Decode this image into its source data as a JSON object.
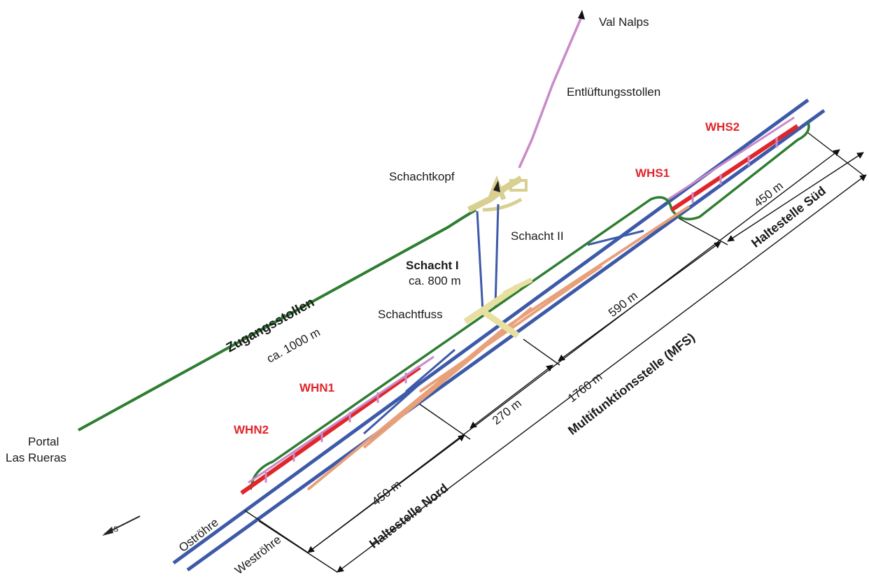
{
  "labels": {
    "val_nalps": "Val Nalps",
    "entlueftungsstollen": "Entlüftungsstollen",
    "schachtkopf": "Schachtkopf",
    "schacht_ii": "Schacht II",
    "schacht_i": "Schacht I",
    "schacht_i_length": "ca. 800 m",
    "schachtfuss": "Schachtfuss",
    "zugangsstollen": "Zugangsstollen",
    "zugangsstollen_length": "ca. 1000 m",
    "portal_line1": "Portal",
    "portal_line2": "Las Rueras",
    "ostroehre": "Oströhre",
    "westroehre": "Weströhre"
  },
  "zones": {
    "whs2": "WHS2",
    "whs1": "WHS1",
    "whn1": "WHN1",
    "whn2": "WHN2"
  },
  "dimensions": {
    "d450_sued": "450 m",
    "haltestelle_sued": "Haltestelle Süd",
    "d590": "590 m",
    "d1760": "1760 m",
    "d270": "270 m",
    "multifunktionsstelle": "Multifunktionsstelle (MFS)",
    "d450_nord": "450 m",
    "haltestelle_nord": "Haltestelle Nord"
  },
  "colors": {
    "east_tube": "#3d5aa8",
    "west_tube": "#3d5aa8",
    "access_tunnel": "#2e7d32",
    "ventilation_tunnel": "#c98ac9",
    "crossover": "#e8a07a",
    "shaft": "#e8e0a0",
    "zone_label": "#e0262b"
  }
}
